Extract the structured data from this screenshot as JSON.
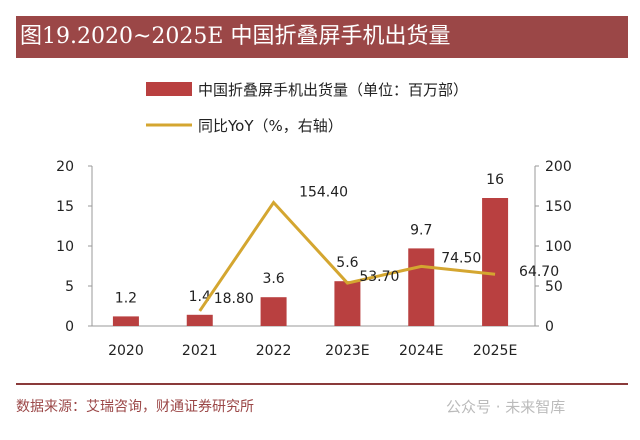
{
  "title": "图19.2020~2025E 中国折叠屏手机出货量",
  "chart_data": {
    "type": "bar+line",
    "categories": [
      "2020",
      "2021",
      "2022",
      "2023E",
      "2024E",
      "2025E"
    ],
    "series": [
      {
        "name": "中国折叠屏手机出货量（单位：百万部）",
        "type": "bar",
        "axis": "left",
        "values": [
          1.2,
          1.4,
          3.6,
          5.6,
          9.7,
          16
        ],
        "labels": [
          "1.2",
          "1.4",
          "3.6",
          "5.6",
          "9.7",
          "16"
        ],
        "color": "#b94040"
      },
      {
        "name": "同比YoY（%，右轴）",
        "type": "line",
        "axis": "right",
        "values": [
          null,
          18.8,
          154.4,
          53.7,
          74.5,
          64.7
        ],
        "labels": [
          "",
          "18.80",
          "154.40",
          "53.70",
          "74.50",
          "64.70"
        ],
        "color": "#d4a630"
      }
    ],
    "left_axis": {
      "range": [
        0,
        20
      ],
      "ticks": [
        "0",
        "5",
        "10",
        "15",
        "20"
      ]
    },
    "right_axis": {
      "range": [
        0,
        200
      ],
      "ticks": [
        "0",
        "50",
        "100",
        "150",
        "200"
      ]
    },
    "grid": false,
    "legend_position": "top"
  },
  "source": "数据来源：艾瑞咨询，财通证券研究所",
  "watermark": "公众号 · 未来智库"
}
